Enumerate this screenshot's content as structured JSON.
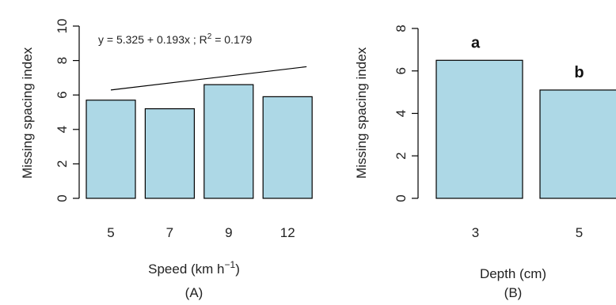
{
  "colors": {
    "bar_fill": "#add8e6",
    "stroke": "#000000"
  },
  "chart_data": [
    {
      "type": "bar",
      "panel_label": "(A)",
      "categories": [
        "5",
        "7",
        "9",
        "12"
      ],
      "values": [
        5.7,
        5.2,
        6.6,
        5.9
      ],
      "ylabel": "Missing spacing index",
      "xlabel_main": "Speed (km h",
      "xlabel_exp": "−1",
      "xlabel_close": ")",
      "ylim": [
        0,
        10
      ],
      "yticks": [
        "0",
        "2",
        "4",
        "6",
        "8",
        "10"
      ],
      "trendline": {
        "intercept": 5.325,
        "slope": 0.193,
        "x": [
          5,
          7,
          9,
          12
        ]
      },
      "annotation": {
        "lhs": "y = 5.325 + 0.193x  ;  R",
        "sup": "2",
        "rhs": " = 0.179"
      }
    },
    {
      "type": "bar",
      "panel_label": "(B)",
      "categories": [
        "3",
        "5"
      ],
      "values": [
        6.5,
        5.1
      ],
      "letters": [
        "a",
        "b"
      ],
      "ylabel": "Missing spacing index",
      "xlabel": "Depth (cm)",
      "ylim": [
        0,
        8
      ],
      "yticks": [
        "0",
        "2",
        "4",
        "6",
        "8"
      ]
    }
  ]
}
